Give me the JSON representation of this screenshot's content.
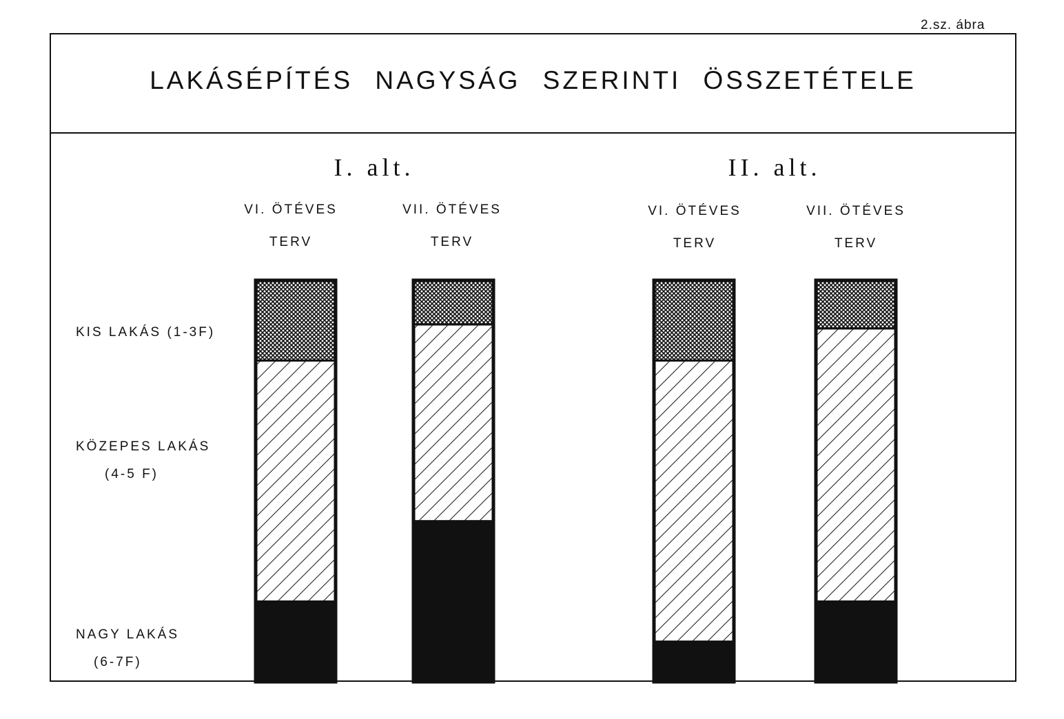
{
  "figure_label": "2.sz. ábra",
  "chart_data": {
    "type": "bar",
    "stacked": true,
    "normalized": true,
    "title": "LAKÁSÉPÍTÉS NAGYSÁG SZERINTI ÖSSZETÉTELE",
    "groups": [
      "I. alt.",
      "II. alt."
    ],
    "categories": [
      {
        "group": 0,
        "line1": "VI. ÖTÉVES",
        "line2": "TERV"
      },
      {
        "group": 0,
        "line1": "VII. ÖTÉVES",
        "line2": "TERV"
      },
      {
        "group": 1,
        "line1": "VI. ÖTÉVES",
        "line2": "TERV"
      },
      {
        "group": 1,
        "line1": "VII. ÖTÉVES",
        "line2": "TERV"
      }
    ],
    "series": [
      {
        "name": "KIS LAKÁS (1-3F)",
        "pattern": "crosshatch",
        "values": [
          20,
          11,
          20,
          12
        ]
      },
      {
        "name": "KÖZEPES LAKÁS (4-5 F)",
        "pattern": "diagonal",
        "values": [
          60,
          49,
          70,
          68
        ]
      },
      {
        "name": "NAGY LAKÁS (6-7F)",
        "pattern": "solid",
        "values": [
          20,
          40,
          10,
          20
        ]
      }
    ],
    "series_labels": [
      [
        "KIS LAKÁS (1-3F)"
      ],
      [
        "KÖZEPES LAKÁS",
        "(4-5 F)"
      ],
      [
        "NAGY LAKÁS",
        "(6-7F)"
      ]
    ],
    "ylim": [
      0,
      100
    ],
    "colors": {
      "ink": "#111111",
      "paper": "#ffffff"
    }
  }
}
